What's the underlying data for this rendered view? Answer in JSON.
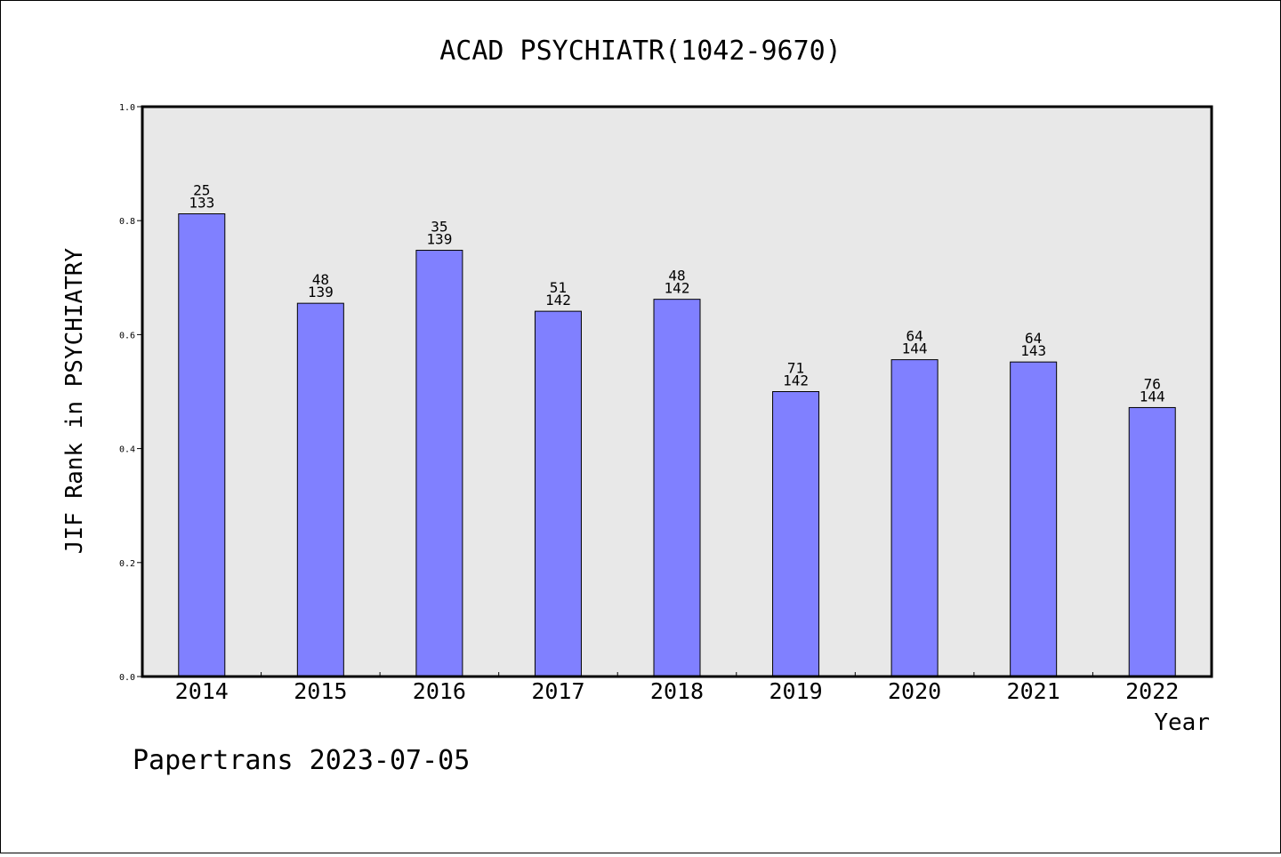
{
  "chart_data": {
    "type": "bar",
    "title": "ACAD PSYCHIATR(1042-9670)",
    "xlabel": "Year",
    "ylabel": "JIF Rank in PSYCHIATRY",
    "ylim": [
      0,
      1.0
    ],
    "yticks": [
      "0.0",
      "0.2",
      "0.4",
      "0.6",
      "0.8",
      "1.0"
    ],
    "categories": [
      "2014",
      "2015",
      "2016",
      "2017",
      "2018",
      "2019",
      "2020",
      "2021",
      "2022"
    ],
    "values": [
      0.812,
      0.655,
      0.748,
      0.641,
      0.662,
      0.5,
      0.556,
      0.552,
      0.472
    ],
    "rank": [
      "25",
      "48",
      "35",
      "51",
      "48",
      "71",
      "64",
      "64",
      "76"
    ],
    "total": [
      "133",
      "139",
      "139",
      "142",
      "142",
      "142",
      "144",
      "143",
      "144"
    ],
    "grid": false,
    "colors": {
      "bar": "#8080ff",
      "plot_background": "#e8e8e8"
    }
  },
  "footer": "Papertrans 2023-07-05"
}
